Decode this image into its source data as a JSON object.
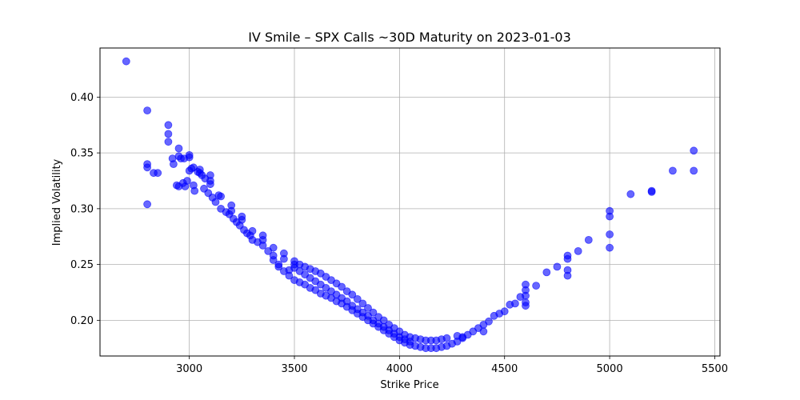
{
  "chart_data": {
    "type": "scatter",
    "title": "IV Smile – SPX Calls ~30D Maturity on 2023-01-03",
    "xlabel": "Strike Price",
    "ylabel": "Implied Volatility",
    "xlim": [
      2575,
      5525
    ],
    "ylim": [
      0.168,
      0.444
    ],
    "xticks": [
      3000,
      3500,
      4000,
      4500,
      5000,
      5500
    ],
    "yticks": [
      0.2,
      0.25,
      0.3,
      0.35,
      0.4
    ],
    "ytick_labels": [
      "0.20",
      "0.25",
      "0.30",
      "0.35",
      "0.40"
    ],
    "grid": true,
    "marker_color": "#0000ff",
    "marker_opacity": 0.6,
    "series": [
      {
        "points": [
          [
            2700,
            0.432
          ],
          [
            2800,
            0.388
          ],
          [
            2800,
            0.34
          ],
          [
            2800,
            0.337
          ],
          [
            2800,
            0.304
          ],
          [
            2830,
            0.332
          ],
          [
            2850,
            0.332
          ],
          [
            2900,
            0.375
          ],
          [
            2900,
            0.367
          ],
          [
            2900,
            0.36
          ],
          [
            2920,
            0.345
          ],
          [
            2925,
            0.34
          ],
          [
            2950,
            0.354
          ],
          [
            2950,
            0.347
          ],
          [
            2960,
            0.345
          ],
          [
            2975,
            0.345
          ],
          [
            2940,
            0.321
          ],
          [
            2950,
            0.32
          ],
          [
            2970,
            0.323
          ],
          [
            2980,
            0.32
          ],
          [
            2990,
            0.325
          ],
          [
            3000,
            0.348
          ],
          [
            3000,
            0.346
          ],
          [
            3000,
            0.334
          ],
          [
            3010,
            0.336
          ],
          [
            3020,
            0.337
          ],
          [
            3020,
            0.321
          ],
          [
            3025,
            0.316
          ],
          [
            3040,
            0.333
          ],
          [
            3050,
            0.335
          ],
          [
            3050,
            0.332
          ],
          [
            3060,
            0.33
          ],
          [
            3075,
            0.327
          ],
          [
            3070,
            0.318
          ],
          [
            3090,
            0.314
          ],
          [
            3100,
            0.33
          ],
          [
            3100,
            0.325
          ],
          [
            3100,
            0.322
          ],
          [
            3110,
            0.31
          ],
          [
            3125,
            0.306
          ],
          [
            3140,
            0.312
          ],
          [
            3150,
            0.311
          ],
          [
            3150,
            0.3
          ],
          [
            3175,
            0.297
          ],
          [
            3190,
            0.295
          ],
          [
            3200,
            0.303
          ],
          [
            3200,
            0.298
          ],
          [
            3210,
            0.291
          ],
          [
            3225,
            0.288
          ],
          [
            3240,
            0.285
          ],
          [
            3250,
            0.293
          ],
          [
            3250,
            0.29
          ],
          [
            3260,
            0.281
          ],
          [
            3275,
            0.278
          ],
          [
            3290,
            0.276
          ],
          [
            3300,
            0.28
          ],
          [
            3300,
            0.272
          ],
          [
            3325,
            0.27
          ],
          [
            3350,
            0.276
          ],
          [
            3350,
            0.272
          ],
          [
            3350,
            0.267
          ],
          [
            3375,
            0.262
          ],
          [
            3400,
            0.265
          ],
          [
            3400,
            0.258
          ],
          [
            3450,
            0.26
          ],
          [
            3450,
            0.255
          ],
          [
            3425,
            0.25
          ],
          [
            3475,
            0.245
          ],
          [
            3500,
            0.253
          ],
          [
            3500,
            0.25
          ],
          [
            3525,
            0.25
          ],
          [
            3550,
            0.248
          ],
          [
            3575,
            0.246
          ],
          [
            3600,
            0.244
          ],
          [
            3625,
            0.242
          ],
          [
            3650,
            0.239
          ],
          [
            3675,
            0.236
          ],
          [
            3700,
            0.233
          ],
          [
            3725,
            0.23
          ],
          [
            3750,
            0.226
          ],
          [
            3775,
            0.223
          ],
          [
            3800,
            0.219
          ],
          [
            3825,
            0.215
          ],
          [
            3850,
            0.211
          ],
          [
            3875,
            0.207
          ],
          [
            3900,
            0.203
          ],
          [
            3925,
            0.2
          ],
          [
            3950,
            0.196
          ],
          [
            3975,
            0.193
          ],
          [
            4000,
            0.19
          ],
          [
            4025,
            0.187
          ],
          [
            4050,
            0.185
          ],
          [
            4075,
            0.184
          ],
          [
            4100,
            0.183
          ],
          [
            4125,
            0.182
          ],
          [
            4150,
            0.182
          ],
          [
            4175,
            0.182
          ],
          [
            4200,
            0.183
          ],
          [
            3500,
            0.247
          ],
          [
            3525,
            0.244
          ],
          [
            3550,
            0.241
          ],
          [
            3575,
            0.238
          ],
          [
            3600,
            0.235
          ],
          [
            3625,
            0.232
          ],
          [
            3650,
            0.229
          ],
          [
            3675,
            0.226
          ],
          [
            3700,
            0.223
          ],
          [
            3725,
            0.22
          ],
          [
            3750,
            0.217
          ],
          [
            3775,
            0.213
          ],
          [
            3800,
            0.21
          ],
          [
            3825,
            0.207
          ],
          [
            3850,
            0.204
          ],
          [
            3875,
            0.2
          ],
          [
            3900,
            0.197
          ],
          [
            3925,
            0.194
          ],
          [
            3950,
            0.191
          ],
          [
            3975,
            0.188
          ],
          [
            4000,
            0.185
          ],
          [
            4025,
            0.183
          ],
          [
            4050,
            0.181
          ],
          [
            3400,
            0.254
          ],
          [
            3425,
            0.248
          ],
          [
            3450,
            0.244
          ],
          [
            3475,
            0.24
          ],
          [
            3500,
            0.236
          ],
          [
            3525,
            0.234
          ],
          [
            3550,
            0.232
          ],
          [
            3575,
            0.229
          ],
          [
            3600,
            0.227
          ],
          [
            3625,
            0.224
          ],
          [
            3650,
            0.222
          ],
          [
            3675,
            0.22
          ],
          [
            3700,
            0.217
          ],
          [
            3725,
            0.215
          ],
          [
            3750,
            0.212
          ],
          [
            3775,
            0.209
          ],
          [
            3800,
            0.206
          ],
          [
            3825,
            0.203
          ],
          [
            3850,
            0.2
          ],
          [
            3875,
            0.197
          ],
          [
            3900,
            0.194
          ],
          [
            3925,
            0.191
          ],
          [
            3950,
            0.188
          ],
          [
            3975,
            0.185
          ],
          [
            4000,
            0.182
          ],
          [
            4025,
            0.18
          ],
          [
            4050,
            0.178
          ],
          [
            4075,
            0.177
          ],
          [
            4100,
            0.176
          ],
          [
            4125,
            0.175
          ],
          [
            4150,
            0.175
          ],
          [
            4175,
            0.175
          ],
          [
            4200,
            0.176
          ],
          [
            4225,
            0.177
          ],
          [
            4250,
            0.179
          ],
          [
            4275,
            0.181
          ],
          [
            4300,
            0.184
          ],
          [
            4325,
            0.187
          ],
          [
            4350,
            0.19
          ],
          [
            4375,
            0.193
          ],
          [
            4400,
            0.196
          ],
          [
            4225,
            0.184
          ],
          [
            4275,
            0.186
          ],
          [
            4300,
            0.185
          ],
          [
            4400,
            0.19
          ],
          [
            4425,
            0.199
          ],
          [
            4450,
            0.204
          ],
          [
            4475,
            0.206
          ],
          [
            4500,
            0.208
          ],
          [
            4525,
            0.214
          ],
          [
            4550,
            0.215
          ],
          [
            4575,
            0.221
          ],
          [
            4600,
            0.232
          ],
          [
            4600,
            0.227
          ],
          [
            4600,
            0.222
          ],
          [
            4600,
            0.216
          ],
          [
            4600,
            0.213
          ],
          [
            4650,
            0.231
          ],
          [
            4700,
            0.243
          ],
          [
            4750,
            0.248
          ],
          [
            4800,
            0.258
          ],
          [
            4800,
            0.255
          ],
          [
            4800,
            0.245
          ],
          [
            4800,
            0.24
          ],
          [
            4850,
            0.262
          ],
          [
            4900,
            0.272
          ],
          [
            5000,
            0.298
          ],
          [
            5000,
            0.293
          ],
          [
            5000,
            0.277
          ],
          [
            5000,
            0.265
          ],
          [
            5100,
            0.313
          ],
          [
            5200,
            0.316
          ],
          [
            5200,
            0.315
          ],
          [
            5300,
            0.334
          ],
          [
            5400,
            0.352
          ],
          [
            5400,
            0.334
          ]
        ]
      }
    ]
  }
}
